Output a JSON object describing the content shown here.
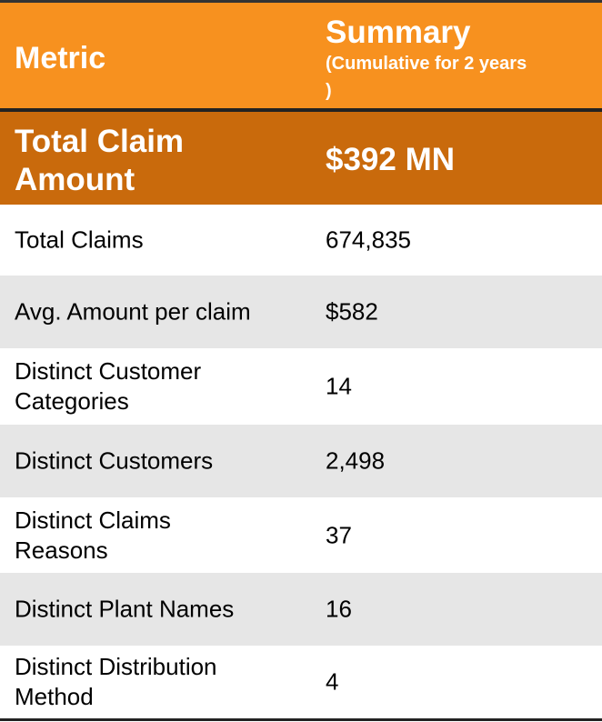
{
  "header": {
    "metric_label": "Metric",
    "summary_label": "Summary",
    "summary_sub": "(Cumulative for 2 years )"
  },
  "total": {
    "label": "Total Claim Amount",
    "value": "$392 MN"
  },
  "rows": [
    {
      "metric": "Total Claims",
      "value": "674,835"
    },
    {
      "metric": "Avg. Amount per claim",
      "value": "$582"
    },
    {
      "metric": "Distinct Customer Categories",
      "value": "14"
    },
    {
      "metric": "Distinct Customers",
      "value": "2,498"
    },
    {
      "metric": "Distinct Claims Reasons",
      "value": "37"
    },
    {
      "metric": "Distinct Plant Names",
      "value": "16"
    },
    {
      "metric": "Distinct Distribution Method",
      "value": "4"
    }
  ],
  "colors": {
    "header_bg": "#f7911f",
    "total_bg": "#c96a0c",
    "row_alt_bg": "#e6e6e6"
  }
}
